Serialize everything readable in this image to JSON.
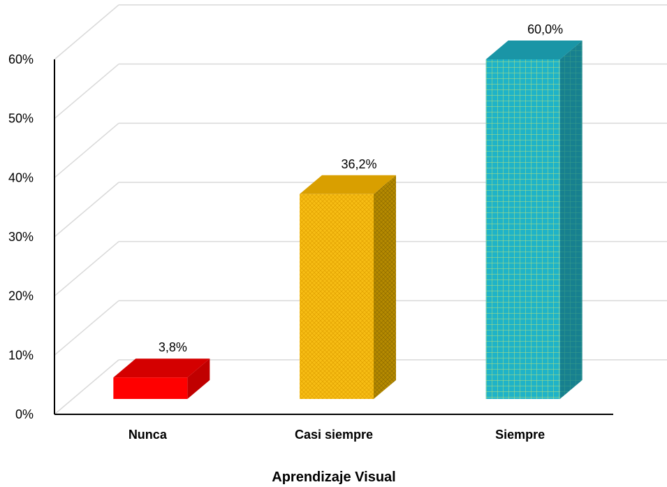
{
  "chart_data": {
    "type": "bar",
    "categories": [
      "Nunca",
      "Casi siempre",
      "Siempre"
    ],
    "values": [
      3.8,
      36.2,
      60.0
    ],
    "data_labels": [
      "3,8%",
      "36,2%",
      "60,0%"
    ],
    "title": "",
    "xlabel": "Aprendizaje Visual",
    "ylabel": "",
    "ylim": [
      0,
      60
    ],
    "y_ticks": [
      0,
      10,
      20,
      30,
      40,
      50,
      60
    ],
    "y_tick_labels": [
      "0%",
      "10%",
      "20%",
      "30%",
      "40%",
      "50%",
      "60%"
    ],
    "grid": true,
    "legend": "none",
    "style": "3d-column",
    "colors": [
      "#ff0000",
      "#f5b800",
      "#1fb3c8"
    ]
  }
}
